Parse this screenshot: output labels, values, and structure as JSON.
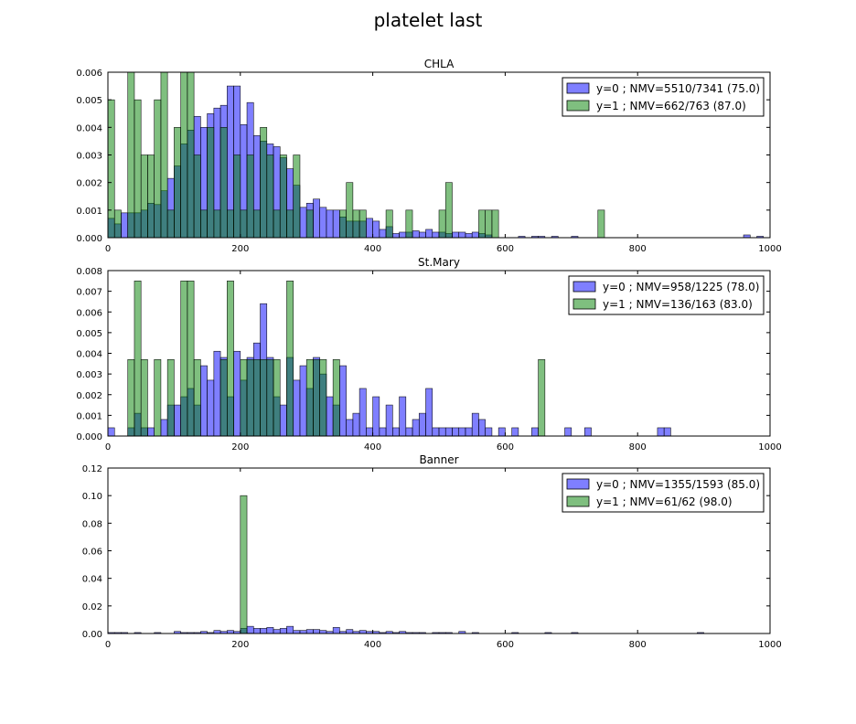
{
  "figure_title": "platelet last",
  "chart_data": [
    {
      "type": "bar",
      "title": "CHLA",
      "xlim": [
        0,
        1000
      ],
      "ylim": [
        0,
        0.006
      ],
      "xticks": [
        "0",
        "200",
        "400",
        "600",
        "800",
        "1000"
      ],
      "yticks": [
        "0.000",
        "0.001",
        "0.002",
        "0.003",
        "0.004",
        "0.005",
        "0.006"
      ],
      "legend_position": "top-right",
      "bin_width": 10,
      "series": [
        {
          "name": "y=0 ; NMV=5510/7341 (75.0)",
          "color": "#0000ff",
          "points": [
            [
              0,
              0.0007
            ],
            [
              10,
              0.0005
            ],
            [
              20,
              0.0009
            ],
            [
              30,
              0.0009
            ],
            [
              40,
              0.0009
            ],
            [
              50,
              0.001
            ],
            [
              60,
              0.00125
            ],
            [
              70,
              0.0012
            ],
            [
              80,
              0.0017
            ],
            [
              90,
              0.00215
            ],
            [
              100,
              0.0026
            ],
            [
              110,
              0.0034
            ],
            [
              120,
              0.0039
            ],
            [
              130,
              0.0044
            ],
            [
              140,
              0.004
            ],
            [
              150,
              0.0045
            ],
            [
              160,
              0.0047
            ],
            [
              170,
              0.0048
            ],
            [
              180,
              0.0055
            ],
            [
              190,
              0.0055
            ],
            [
              200,
              0.0041
            ],
            [
              210,
              0.0049
            ],
            [
              220,
              0.0037
            ],
            [
              230,
              0.0035
            ],
            [
              240,
              0.0034
            ],
            [
              250,
              0.0033
            ],
            [
              260,
              0.0029
            ],
            [
              270,
              0.0025
            ],
            [
              280,
              0.0019
            ],
            [
              290,
              0.0011
            ],
            [
              300,
              0.00125
            ],
            [
              310,
              0.0014
            ],
            [
              320,
              0.0011
            ],
            [
              330,
              0.001
            ],
            [
              340,
              0.001
            ],
            [
              350,
              0.00075
            ],
            [
              360,
              0.0006
            ],
            [
              370,
              0.0006
            ],
            [
              380,
              0.0006
            ],
            [
              390,
              0.0007
            ],
            [
              400,
              0.0006
            ],
            [
              410,
              0.0003
            ],
            [
              420,
              0.0004
            ],
            [
              430,
              0.00015
            ],
            [
              440,
              0.0002
            ],
            [
              450,
              0.0002
            ],
            [
              460,
              0.00025
            ],
            [
              470,
              0.0002
            ],
            [
              480,
              0.0003
            ],
            [
              490,
              0.0002
            ],
            [
              500,
              0.0002
            ],
            [
              510,
              0.00015
            ],
            [
              520,
              0.0002
            ],
            [
              530,
              0.0002
            ],
            [
              540,
              0.00015
            ],
            [
              550,
              0.0002
            ],
            [
              560,
              0.00015
            ],
            [
              570,
              0.0001
            ],
            [
              620,
              5e-05
            ],
            [
              640,
              5e-05
            ],
            [
              650,
              5e-05
            ],
            [
              670,
              5e-05
            ],
            [
              700,
              5e-05
            ],
            [
              960,
              0.0001
            ],
            [
              980,
              5e-05
            ]
          ]
        },
        {
          "name": "y=1 ; NMV=662/763 (87.0)",
          "color": "#008000",
          "points": [
            [
              0,
              0.005
            ],
            [
              10,
              0.001
            ],
            [
              30,
              0.006
            ],
            [
              40,
              0.005
            ],
            [
              50,
              0.003
            ],
            [
              60,
              0.003
            ],
            [
              70,
              0.005
            ],
            [
              80,
              0.006
            ],
            [
              90,
              0.001
            ],
            [
              100,
              0.004
            ],
            [
              110,
              0.006
            ],
            [
              120,
              0.006
            ],
            [
              130,
              0.003
            ],
            [
              140,
              0.001
            ],
            [
              150,
              0.004
            ],
            [
              160,
              0.001
            ],
            [
              170,
              0.004
            ],
            [
              180,
              0.001
            ],
            [
              190,
              0.003
            ],
            [
              200,
              0.001
            ],
            [
              210,
              0.003
            ],
            [
              220,
              0.001
            ],
            [
              230,
              0.004
            ],
            [
              240,
              0.003
            ],
            [
              250,
              0.001
            ],
            [
              260,
              0.003
            ],
            [
              270,
              0.001
            ],
            [
              280,
              0.003
            ],
            [
              300,
              0.001
            ],
            [
              350,
              0.001
            ],
            [
              360,
              0.002
            ],
            [
              370,
              0.001
            ],
            [
              380,
              0.001
            ],
            [
              420,
              0.001
            ],
            [
              450,
              0.001
            ],
            [
              500,
              0.001
            ],
            [
              510,
              0.002
            ],
            [
              560,
              0.001
            ],
            [
              570,
              0.001
            ],
            [
              580,
              0.001
            ],
            [
              740,
              0.001
            ]
          ]
        }
      ]
    },
    {
      "type": "bar",
      "title": "St.Mary",
      "xlim": [
        0,
        1000
      ],
      "ylim": [
        0,
        0.008
      ],
      "xticks": [
        "0",
        "200",
        "400",
        "600",
        "800",
        "1000"
      ],
      "yticks": [
        "0.000",
        "0.001",
        "0.002",
        "0.003",
        "0.004",
        "0.005",
        "0.006",
        "0.007",
        "0.008"
      ],
      "legend_position": "top-right",
      "bin_width": 10,
      "series": [
        {
          "name": "y=0 ; NMV=958/1225 (78.0)",
          "color": "#0000ff",
          "points": [
            [
              0,
              0.0004
            ],
            [
              30,
              0.0004
            ],
            [
              40,
              0.0011
            ],
            [
              50,
              0.0004
            ],
            [
              60,
              0.0004
            ],
            [
              80,
              0.0008
            ],
            [
              90,
              0.0015
            ],
            [
              100,
              0.0015
            ],
            [
              110,
              0.0019
            ],
            [
              120,
              0.0023
            ],
            [
              130,
              0.0015
            ],
            [
              140,
              0.0034
            ],
            [
              150,
              0.0027
            ],
            [
              160,
              0.0041
            ],
            [
              170,
              0.0038
            ],
            [
              180,
              0.0019
            ],
            [
              190,
              0.0041
            ],
            [
              200,
              0.0027
            ],
            [
              210,
              0.0038
            ],
            [
              220,
              0.0045
            ],
            [
              230,
              0.0064
            ],
            [
              240,
              0.0038
            ],
            [
              250,
              0.0019
            ],
            [
              260,
              0.0015
            ],
            [
              270,
              0.0038
            ],
            [
              280,
              0.0027
            ],
            [
              290,
              0.0034
            ],
            [
              300,
              0.0023
            ],
            [
              310,
              0.0038
            ],
            [
              320,
              0.003
            ],
            [
              330,
              0.0019
            ],
            [
              340,
              0.0015
            ],
            [
              350,
              0.0034
            ],
            [
              360,
              0.0008
            ],
            [
              370,
              0.0011
            ],
            [
              380,
              0.0023
            ],
            [
              390,
              0.0004
            ],
            [
              400,
              0.0019
            ],
            [
              410,
              0.0004
            ],
            [
              420,
              0.0015
            ],
            [
              430,
              0.0004
            ],
            [
              440,
              0.0019
            ],
            [
              450,
              0.0004
            ],
            [
              460,
              0.0008
            ],
            [
              470,
              0.0011
            ],
            [
              480,
              0.0023
            ],
            [
              490,
              0.0004
            ],
            [
              500,
              0.0004
            ],
            [
              510,
              0.0004
            ],
            [
              520,
              0.0004
            ],
            [
              530,
              0.0004
            ],
            [
              540,
              0.0004
            ],
            [
              550,
              0.0011
            ],
            [
              560,
              0.0008
            ],
            [
              570,
              0.0004
            ],
            [
              590,
              0.0004
            ],
            [
              610,
              0.0004
            ],
            [
              640,
              0.0004
            ],
            [
              690,
              0.0004
            ],
            [
              720,
              0.0004
            ],
            [
              830,
              0.0004
            ],
            [
              840,
              0.0004
            ]
          ]
        },
        {
          "name": "y=1 ; NMV=136/163 (83.0)",
          "color": "#008000",
          "points": [
            [
              30,
              0.0037
            ],
            [
              40,
              0.0075
            ],
            [
              50,
              0.0037
            ],
            [
              70,
              0.0037
            ],
            [
              90,
              0.0037
            ],
            [
              110,
              0.0075
            ],
            [
              120,
              0.0075
            ],
            [
              130,
              0.0037
            ],
            [
              170,
              0.0037
            ],
            [
              180,
              0.0075
            ],
            [
              200,
              0.0037
            ],
            [
              210,
              0.0037
            ],
            [
              220,
              0.0037
            ],
            [
              230,
              0.0037
            ],
            [
              240,
              0.0037
            ],
            [
              250,
              0.0037
            ],
            [
              270,
              0.0075
            ],
            [
              300,
              0.0037
            ],
            [
              310,
              0.0037
            ],
            [
              320,
              0.0037
            ],
            [
              340,
              0.0037
            ],
            [
              650,
              0.0037
            ]
          ]
        }
      ]
    },
    {
      "type": "bar",
      "title": "Banner",
      "xlim": [
        0,
        1000
      ],
      "ylim": [
        0,
        0.12
      ],
      "xticks": [
        "0",
        "200",
        "400",
        "600",
        "800",
        "1000"
      ],
      "yticks": [
        "0.00",
        "0.02",
        "0.04",
        "0.06",
        "0.08",
        "0.10",
        "0.12"
      ],
      "legend_position": "top-right",
      "bin_width": 10,
      "series": [
        {
          "name": "y=0 ; NMV=1355/1593 (85.0)",
          "color": "#0000ff",
          "points": [
            [
              0,
              0.0007
            ],
            [
              10,
              0.0007
            ],
            [
              20,
              0.0007
            ],
            [
              40,
              0.0007
            ],
            [
              70,
              0.0007
            ],
            [
              100,
              0.0015
            ],
            [
              110,
              0.0007
            ],
            [
              120,
              0.0007
            ],
            [
              130,
              0.0007
            ],
            [
              140,
              0.0015
            ],
            [
              150,
              0.0007
            ],
            [
              160,
              0.0022
            ],
            [
              170,
              0.0015
            ],
            [
              180,
              0.0022
            ],
            [
              190,
              0.0015
            ],
            [
              200,
              0.0037
            ],
            [
              210,
              0.0052
            ],
            [
              220,
              0.0037
            ],
            [
              230,
              0.0037
            ],
            [
              240,
              0.0044
            ],
            [
              250,
              0.0029
            ],
            [
              260,
              0.0037
            ],
            [
              270,
              0.0052
            ],
            [
              280,
              0.0022
            ],
            [
              290,
              0.0022
            ],
            [
              300,
              0.0029
            ],
            [
              310,
              0.0029
            ],
            [
              320,
              0.0022
            ],
            [
              330,
              0.0015
            ],
            [
              340,
              0.0044
            ],
            [
              350,
              0.0015
            ],
            [
              360,
              0.0029
            ],
            [
              370,
              0.0015
            ],
            [
              380,
              0.0022
            ],
            [
              390,
              0.0015
            ],
            [
              400,
              0.0015
            ],
            [
              410,
              0.0007
            ],
            [
              420,
              0.0015
            ],
            [
              430,
              0.0007
            ],
            [
              440,
              0.0015
            ],
            [
              450,
              0.0007
            ],
            [
              460,
              0.0007
            ],
            [
              470,
              0.0007
            ],
            [
              490,
              0.0007
            ],
            [
              500,
              0.0007
            ],
            [
              510,
              0.0007
            ],
            [
              530,
              0.0015
            ],
            [
              550,
              0.0007
            ],
            [
              610,
              0.0007
            ],
            [
              660,
              0.0007
            ],
            [
              700,
              0.0007
            ],
            [
              890,
              0.0007
            ]
          ]
        },
        {
          "name": "y=1 ; NMV=61/62 (98.0)",
          "color": "#008000",
          "points": [
            [
              200,
              0.1
            ],
            [
              210,
              0.0002
            ]
          ]
        }
      ]
    }
  ]
}
